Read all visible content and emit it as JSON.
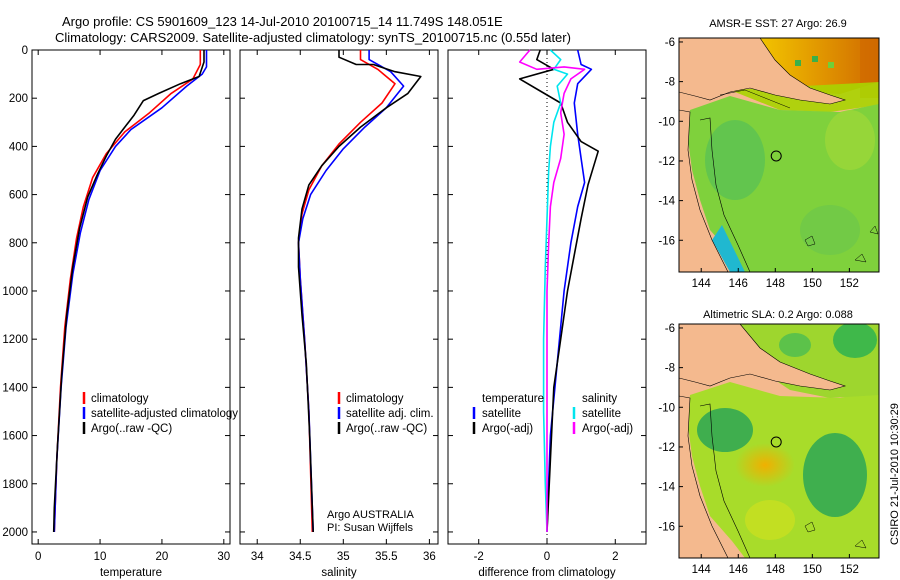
{
  "title": {
    "line1": "Argo profile: CS 5901609_123 14-Jul-2010 20100715_14 11.749S 148.051E",
    "line2": "Climatology: CARS2009. Satellite-adjusted climatology: synTS_20100715.nc (0.55d later)"
  },
  "side_label": "CSIRO 21-Jul-2010 10:30:29",
  "colors": {
    "climatology": "#ff0000",
    "satellite": "#0000ff",
    "argo": "#000000",
    "magenta": "#ff00ff",
    "cyan": "#00e5ee",
    "land": "#f4b98e"
  },
  "chart_data": [
    {
      "type": "line",
      "name": "temperature-panel",
      "xlabel": "temperature",
      "xlim": [
        -1,
        31
      ],
      "ylim": [
        0,
        2050
      ],
      "xticks": [
        "0",
        "10",
        "20",
        "30"
      ],
      "xtick_values": [
        0,
        10,
        20,
        30
      ],
      "yticks": [
        "0",
        "200",
        "400",
        "600",
        "800",
        "1000",
        "1200",
        "1400",
        "1600",
        "1800",
        "2000"
      ],
      "ytick_values": [
        0,
        200,
        400,
        600,
        800,
        1000,
        1200,
        1400,
        1600,
        1800,
        2000
      ],
      "legend": [
        "climatology",
        "satellite-adjusted climatology",
        "Argo(..raw -QC)"
      ],
      "series": [
        {
          "name": "climatology",
          "color": "#ff0000",
          "points": [
            [
              26.2,
              0
            ],
            [
              26.2,
              60
            ],
            [
              25,
              120
            ],
            [
              21.5,
              180
            ],
            [
              18,
              260
            ],
            [
              14,
              340
            ],
            [
              11,
              430
            ],
            [
              8.8,
              530
            ],
            [
              7.3,
              650
            ],
            [
              6.2,
              780
            ],
            [
              5.2,
              950
            ],
            [
              4.3,
              1150
            ],
            [
              3.6,
              1400
            ],
            [
              3.0,
              1700
            ],
            [
              2.6,
              2000
            ]
          ]
        },
        {
          "name": "satellite-adjusted climatology",
          "color": "#0000ff",
          "points": [
            [
              27.2,
              0
            ],
            [
              27.2,
              70
            ],
            [
              26.5,
              100
            ],
            [
              24,
              150
            ],
            [
              20,
              240
            ],
            [
              15,
              330
            ],
            [
              12.5,
              400
            ],
            [
              10,
              500
            ],
            [
              8.2,
              620
            ],
            [
              6.8,
              760
            ],
            [
              5.6,
              930
            ],
            [
              4.5,
              1150
            ],
            [
              3.7,
              1400
            ],
            [
              3.0,
              1700
            ],
            [
              2.6,
              2000
            ]
          ]
        },
        {
          "name": "Argo(..raw -QC)",
          "color": "#000000",
          "points": [
            [
              26.8,
              0
            ],
            [
              26.8,
              50
            ],
            [
              26,
              110
            ],
            [
              23,
              140
            ],
            [
              19.5,
              180
            ],
            [
              17,
              210
            ],
            [
              15.5,
              270
            ],
            [
              14,
              320
            ],
            [
              12.5,
              370
            ],
            [
              11,
              440
            ],
            [
              9.5,
              520
            ],
            [
              8,
              610
            ],
            [
              6.7,
              740
            ],
            [
              5.6,
              900
            ],
            [
              4.6,
              1100
            ],
            [
              3.8,
              1350
            ],
            [
              3.1,
              1650
            ],
            [
              2.6,
              1900
            ],
            [
              2.5,
              2000
            ]
          ]
        }
      ]
    },
    {
      "type": "line",
      "name": "salinity-panel",
      "xlabel": "salinity",
      "xlim": [
        33.8,
        36.1
      ],
      "ylim": [
        0,
        2050
      ],
      "xticks": [
        "34",
        "34.5",
        "35",
        "35.5",
        "36"
      ],
      "xtick_values": [
        34,
        34.5,
        35,
        35.5,
        36
      ],
      "legend": [
        "climatology",
        "satellite adj. clim.",
        "Argo(..raw -QC)"
      ],
      "annotation": [
        "Argo AUSTRALIA",
        "PI: Susan Wijffels"
      ],
      "series": [
        {
          "name": "climatology",
          "color": "#ff0000",
          "points": [
            [
              35.2,
              0
            ],
            [
              35.2,
              40
            ],
            [
              35.4,
              80
            ],
            [
              35.6,
              140
            ],
            [
              35.45,
              220
            ],
            [
              35.2,
              300
            ],
            [
              34.95,
              390
            ],
            [
              34.75,
              480
            ],
            [
              34.6,
              580
            ],
            [
              34.52,
              680
            ],
            [
              34.48,
              800
            ],
            [
              34.5,
              950
            ],
            [
              34.55,
              1200
            ],
            [
              34.6,
              1500
            ],
            [
              34.64,
              2000
            ]
          ]
        },
        {
          "name": "satellite adj. clim.",
          "color": "#0000ff",
          "points": [
            [
              35.3,
              0
            ],
            [
              35.3,
              40
            ],
            [
              35.55,
              90
            ],
            [
              35.7,
              150
            ],
            [
              35.5,
              240
            ],
            [
              35.25,
              320
            ],
            [
              35.0,
              410
            ],
            [
              34.8,
              500
            ],
            [
              34.62,
              600
            ],
            [
              34.53,
              700
            ],
            [
              34.48,
              800
            ],
            [
              34.5,
              950
            ],
            [
              34.55,
              1200
            ],
            [
              34.6,
              1500
            ],
            [
              34.65,
              2000
            ]
          ]
        },
        {
          "name": "Argo(..raw -QC)",
          "color": "#000000",
          "points": [
            [
              34.95,
              0
            ],
            [
              34.95,
              30
            ],
            [
              35.15,
              60
            ],
            [
              35.35,
              60
            ],
            [
              35.6,
              90
            ],
            [
              35.9,
              110
            ],
            [
              35.75,
              180
            ],
            [
              35.5,
              240
            ],
            [
              35.2,
              320
            ],
            [
              34.95,
              400
            ],
            [
              34.75,
              480
            ],
            [
              34.6,
              560
            ],
            [
              34.52,
              660
            ],
            [
              34.48,
              780
            ],
            [
              34.48,
              900
            ],
            [
              34.52,
              1100
            ],
            [
              34.57,
              1300
            ],
            [
              34.61,
              1600
            ],
            [
              34.65,
              2000
            ]
          ]
        }
      ]
    },
    {
      "type": "line",
      "name": "difference-panel",
      "xlabel": "difference from climatology",
      "xlim": [
        -2.9,
        2.9
      ],
      "ylim": [
        0,
        2050
      ],
      "xticks": [
        "-2",
        "0",
        "2"
      ],
      "xtick_values": [
        -2,
        0,
        2
      ],
      "legend_headers": [
        "temperature",
        "salinity"
      ],
      "legend": [
        "satellite",
        "Argo(-adj)",
        "satellite",
        "Argo(-adj)"
      ],
      "series": [
        {
          "name": "temperature satellite",
          "color": "#0000ff",
          "points": [
            [
              0.9,
              0
            ],
            [
              1.0,
              60
            ],
            [
              1.3,
              80
            ],
            [
              0.9,
              140
            ],
            [
              0.8,
              220
            ],
            [
              0.9,
              350
            ],
            [
              1.0,
              450
            ],
            [
              1.1,
              550
            ],
            [
              0.9,
              650
            ],
            [
              0.7,
              800
            ],
            [
              0.5,
              1000
            ],
            [
              0.3,
              1300
            ],
            [
              0.1,
              1600
            ],
            [
              0.02,
              1900
            ],
            [
              0,
              2000
            ]
          ]
        },
        {
          "name": "temperature Argo(-adj)",
          "color": "#000000",
          "points": [
            [
              -0.2,
              0
            ],
            [
              -0.3,
              40
            ],
            [
              0.2,
              80
            ],
            [
              -0.8,
              120
            ],
            [
              -0.2,
              170
            ],
            [
              0.4,
              220
            ],
            [
              0.6,
              300
            ],
            [
              1.0,
              380
            ],
            [
              1.5,
              420
            ],
            [
              1.2,
              560
            ],
            [
              1.0,
              700
            ],
            [
              0.8,
              850
            ],
            [
              0.6,
              1000
            ],
            [
              0.4,
              1200
            ],
            [
              0.2,
              1400
            ],
            [
              0.1,
              1700
            ],
            [
              0,
              2000
            ]
          ]
        },
        {
          "name": "salinity satellite",
          "color": "#00e5ee",
          "points": [
            [
              0.1,
              0
            ],
            [
              0.4,
              40
            ],
            [
              0.2,
              80
            ],
            [
              0.6,
              100
            ],
            [
              0.3,
              150
            ],
            [
              0.4,
              220
            ],
            [
              0.2,
              300
            ],
            [
              0.1,
              400
            ],
            [
              0.05,
              500
            ],
            [
              0,
              700
            ],
            [
              -0.05,
              900
            ],
            [
              -0.1,
              1200
            ],
            [
              -0.1,
              1500
            ],
            [
              -0.05,
              1800
            ],
            [
              0,
              2000
            ]
          ]
        },
        {
          "name": "salinity Argo(-adj)",
          "color": "#ff00ff",
          "points": [
            [
              -0.5,
              0
            ],
            [
              -0.8,
              50
            ],
            [
              -0.3,
              80
            ],
            [
              0.5,
              70
            ],
            [
              1.1,
              80
            ],
            [
              0.7,
              120
            ],
            [
              0.5,
              180
            ],
            [
              0.4,
              260
            ],
            [
              0.5,
              350
            ],
            [
              0.4,
              450
            ],
            [
              0.2,
              550
            ],
            [
              0.1,
              650
            ],
            [
              0.05,
              800
            ],
            [
              0,
              1000
            ],
            [
              0,
              1500
            ],
            [
              0,
              2000
            ]
          ]
        }
      ]
    },
    {
      "type": "heatmap",
      "name": "sst-map",
      "title": "AMSR-E SST: 27 Argo: 26.9",
      "xticks": [
        "144",
        "146",
        "148",
        "150",
        "152"
      ],
      "xtick_values": [
        144,
        146,
        148,
        150,
        152
      ],
      "yticks": [
        "-6",
        "-8",
        "-10",
        "-12",
        "-14",
        "-16"
      ],
      "ytick_values": [
        -6,
        -8,
        -10,
        -12,
        -14,
        -16
      ],
      "xlim": [
        142.8,
        153.6
      ],
      "ylim": [
        -17.6,
        -5.8
      ],
      "marker": [
        148.05,
        -11.75
      ]
    },
    {
      "type": "heatmap",
      "name": "sla-map",
      "title": "Altimetric SLA: 0.2 Argo: 0.088",
      "xticks": [
        "144",
        "146",
        "148",
        "150",
        "152"
      ],
      "xtick_values": [
        144,
        146,
        148,
        150,
        152
      ],
      "yticks": [
        "-6",
        "-8",
        "-10",
        "-12",
        "-14",
        "-16"
      ],
      "ytick_values": [
        -6,
        -8,
        -10,
        -12,
        -14,
        -16
      ],
      "xlim": [
        142.8,
        153.6
      ],
      "ylim": [
        -17.6,
        -5.8
      ],
      "marker": [
        148.05,
        -11.75
      ]
    }
  ]
}
